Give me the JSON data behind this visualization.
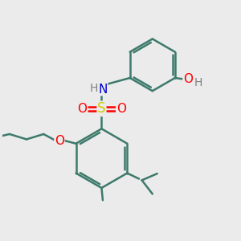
{
  "background_color": "#ebebeb",
  "bond_color": "#3d7a6b",
  "bond_width": 1.8,
  "atom_colors": {
    "S": "#cccc00",
    "O": "#ff0000",
    "N": "#0000cc",
    "H": "#808080",
    "C": "#3d7a6b"
  },
  "figsize": [
    3.0,
    3.0
  ],
  "dpi": 100,
  "xlim": [
    0,
    10
  ],
  "ylim": [
    0,
    10
  ]
}
